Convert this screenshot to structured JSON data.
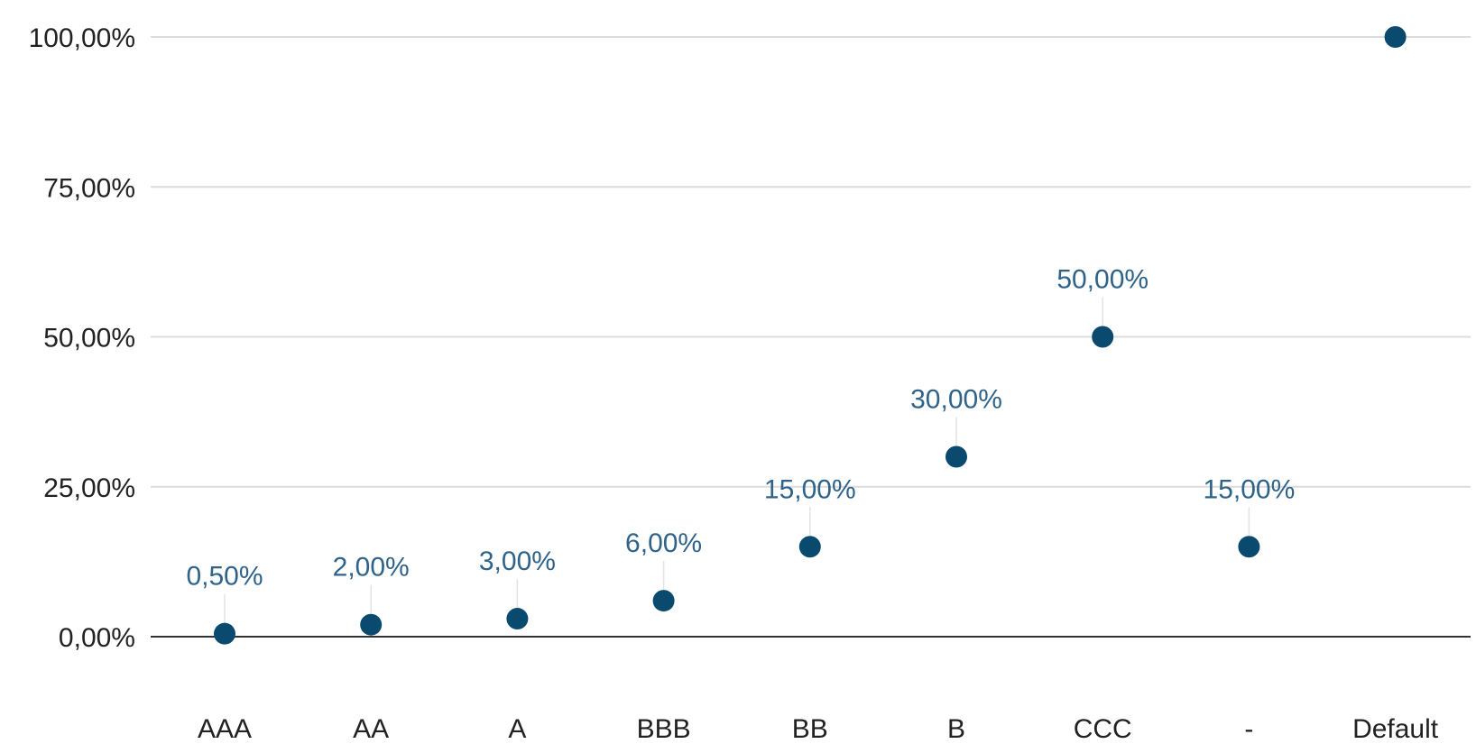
{
  "chart_data": {
    "type": "scatter",
    "categories": [
      "AAA",
      "AA",
      "A",
      "BBB",
      "BB",
      "B",
      "CCC",
      "-",
      "Default"
    ],
    "values": [
      0.5,
      2.0,
      3.0,
      6.0,
      15.0,
      30.0,
      50.0,
      15.0,
      100.0
    ],
    "data_labels": [
      "0,50%",
      "2,00%",
      "3,00%",
      "6,00%",
      "15,00%",
      "30,00%",
      "50,00%",
      "15,00%",
      ""
    ],
    "ylim": [
      0,
      100
    ],
    "yticks": [
      0,
      25,
      50,
      75,
      100
    ],
    "ytick_labels": [
      "0,00%",
      "25,00%",
      "50,00%",
      "75,00%",
      "100,00%"
    ],
    "grid": true,
    "legend": "none",
    "title": "",
    "xlabel": "",
    "ylabel": "",
    "colors": {
      "point": "#0b4a6f",
      "label": "#2f6389",
      "grid": "#dcdcdc",
      "axis": "#333333",
      "text": "#222222"
    }
  }
}
